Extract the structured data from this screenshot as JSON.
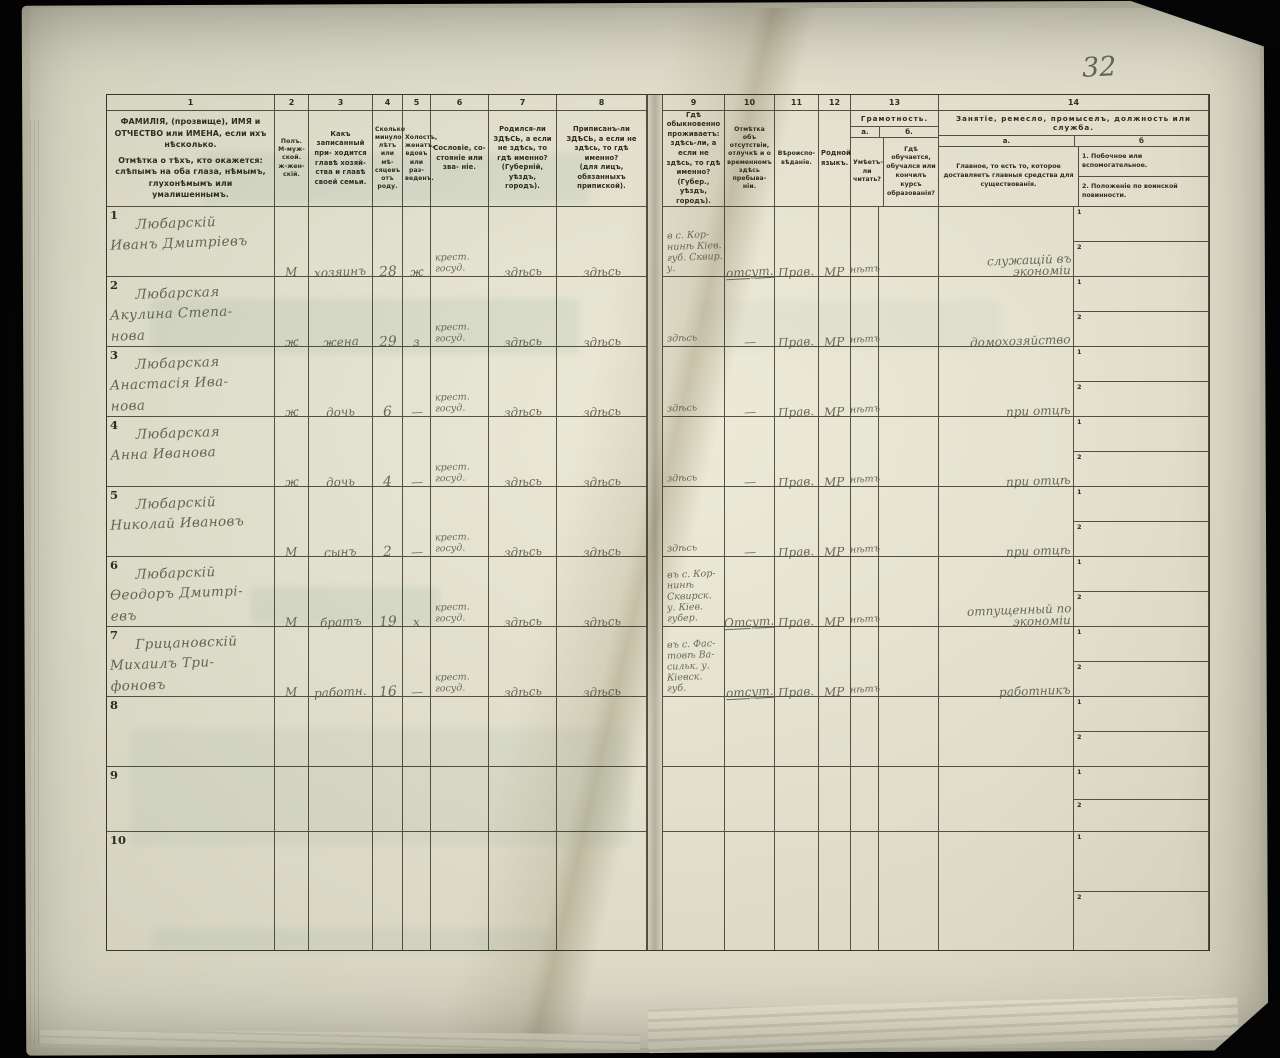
{
  "page": {
    "folio": "32"
  },
  "table": {
    "header": {
      "col_numbers": [
        "1",
        "2",
        "3",
        "4",
        "5",
        "6",
        "7",
        "8",
        "9",
        "10",
        "11",
        "12",
        "13",
        "14"
      ],
      "columns": [
        {
          "number": "1",
          "label": "ФАМИЛІЯ, (прозвище), ИМЯ и ОТЧЕСТВО или ИМЕНА, если ихъ нѣсколько.",
          "note": "Отмѣтка о тѣхъ, кто окажется: слѣпымъ на оба глаза, нѣмымъ, глухонѣмымъ или умалишеннымъ."
        },
        {
          "number": "2",
          "label": "Полъ.\nМ-муж-ской.\nж-жен-скій."
        },
        {
          "number": "3",
          "label": "Какъ записанный при- ходится главѣ хозяй- ства и главѣ своей семьи."
        },
        {
          "number": "4",
          "label": "Сколько минуло лѣтъ или мѣ- сяцевъ отъ роду."
        },
        {
          "number": "5",
          "label": "Холостъ, женатъ, вдовъ или раз- веденъ."
        },
        {
          "number": "6",
          "label": "Сословіе, со- стояніе или зва- ніе."
        },
        {
          "number": "7",
          "label": "Родился-ли ЗДѢСЬ, а если не здѣсь, то гдѣ именно?\n(Губерній, уѣздъ, городъ)."
        },
        {
          "number": "8",
          "label": "Приписанъ-ли ЗДѢСЬ, а если не здѣсь, то гдѣ именно?\n(для лицъ, обязанныхъ припиской)."
        },
        {
          "number": "9",
          "label": "Гдѣ обыкновенно проживаетъ: здѣсь-ли, а если не здѣсь, то гдѣ именно?\n(Губер., уѣздъ, городъ)."
        },
        {
          "number": "10",
          "label": "Отмѣтка объ отсутствіи, отлучкѣ и о временномъ здѣсь пребыва- ніи."
        },
        {
          "number": "11",
          "label": "Вѣроиспо- вѣданіе."
        },
        {
          "number": "12",
          "label": "Родной языкъ."
        },
        {
          "number": "13",
          "label": "Грамотность.",
          "sub_a_letter": "а.",
          "sub_b_letter": "б.",
          "sub_a": "Умѣетъ- ли читать?",
          "sub_b": "Гдѣ обучается, обучался или кончилъ курсъ образованія?"
        },
        {
          "number": "14",
          "label": "Занятіе, ремесло, промыселъ, должность или служба.",
          "sub_a_letter": "а.",
          "sub_b_letter": "б",
          "sub_a": "Главное, то есть то, которое доставляетъ главныя средства для существованія.",
          "sub_b_1": "1. Побочное или вспомогательное.",
          "sub_b_2": "2. Положеніе по воинской повинности.",
          "row_markers": [
            "1",
            "2"
          ]
        }
      ]
    },
    "records": [
      {
        "row_number": "1",
        "name_lines": [
          "Любарскій",
          "Иванъ Дмитріевъ"
        ],
        "sex": "М",
        "relation": "хозяинъ",
        "age": "28",
        "marital": "ж",
        "estate_lines": [
          "крест.",
          "госуд."
        ],
        "born": "здѣсь",
        "registered": "здѣсь",
        "residence_lines": [
          "в с. Кор-",
          "нинѣ Кіев.",
          "губ. Сквир.",
          "у."
        ],
        "absence": "отсут.",
        "religion": "Прав.",
        "language": "МР",
        "reads": "нѣтъ",
        "reads_where": "",
        "occupation_lines": [
          "служащій въ",
          "экономіи"
        ]
      },
      {
        "row_number": "2",
        "name_lines": [
          "Любарская",
          "Акулина Степа-",
          "нова"
        ],
        "sex": "ж",
        "relation": "жена",
        "age": "29",
        "marital": "з",
        "estate_lines": [
          "крест.",
          "госуд."
        ],
        "born": "здѣсь",
        "registered": "здѣсь",
        "residence_lines": [
          "здѣсь"
        ],
        "absence": "—",
        "religion": "Прав.",
        "language": "МР",
        "reads": "нѣтъ",
        "reads_where": "",
        "occupation_lines": [
          "домохозяйство"
        ]
      },
      {
        "row_number": "3",
        "name_lines": [
          "Любарская",
          "Анастасія Ива-",
          "нова"
        ],
        "sex": "ж",
        "relation": "дочь",
        "age": "6",
        "marital": "—",
        "estate_lines": [
          "крест.",
          "госуд."
        ],
        "born": "здѣсь",
        "registered": "здѣсь",
        "residence_lines": [
          "здѣсь"
        ],
        "absence": "—",
        "religion": "Прав.",
        "language": "МР",
        "reads": "нѣтъ",
        "reads_where": "",
        "occupation_lines": [
          "при отцѣ"
        ]
      },
      {
        "row_number": "4",
        "name_lines": [
          "Любарская",
          "Анна Иванова"
        ],
        "sex": "ж",
        "relation": "дочь",
        "age": "4",
        "marital": "—",
        "estate_lines": [
          "крест.",
          "госуд."
        ],
        "born": "здѣсь",
        "registered": "здѣсь",
        "residence_lines": [
          "здѣсь"
        ],
        "absence": "—",
        "religion": "Прав.",
        "language": "МР",
        "reads": "нѣтъ",
        "reads_where": "",
        "occupation_lines": [
          "при отцѣ"
        ]
      },
      {
        "row_number": "5",
        "name_lines": [
          "Любарскій",
          "Николай Ивановъ"
        ],
        "sex": "М",
        "relation": "сынъ",
        "age": "2",
        "marital": "—",
        "estate_lines": [
          "крест.",
          "госуд."
        ],
        "born": "здѣсь",
        "registered": "здѣсь",
        "residence_lines": [
          "здѣсь"
        ],
        "absence": "—",
        "religion": "Прав.",
        "language": "МР",
        "reads": "нѣтъ",
        "reads_where": "",
        "occupation_lines": [
          "при отцѣ"
        ]
      },
      {
        "row_number": "6",
        "name_lines": [
          "Любарскій",
          "Өеодоръ Дмитрі-",
          "евъ"
        ],
        "sex": "М",
        "relation": "братъ",
        "age": "19",
        "marital": "х",
        "estate_lines": [
          "крест.",
          "госуд."
        ],
        "born": "здѣсь",
        "registered": "здѣсь",
        "residence_lines": [
          "въ с. Кор-",
          "нинѣ",
          "Сквирск.",
          "у. Кіев.",
          "губер."
        ],
        "absence": "Отсут.",
        "religion": "Прав.",
        "language": "МР",
        "reads": "нѣтъ",
        "reads_where": "",
        "occupation_lines": [
          "отпущенный по",
          "экономіи"
        ]
      },
      {
        "row_number": "7",
        "name_lines": [
          "Грицановскій",
          "Михаилъ Три-",
          "фоновъ"
        ],
        "sex": "М",
        "relation": "работн.",
        "age": "16",
        "marital": "—",
        "estate_lines": [
          "крест.",
          "госуд."
        ],
        "born": "здѣсь",
        "registered": "здѣсь",
        "residence_lines": [
          "въ с. Фас-",
          "товѣ Ва-",
          "сильк. у.",
          "Кіевск.",
          "губ."
        ],
        "absence": "отсут.",
        "religion": "Прав.",
        "language": "МР",
        "reads": "нѣтъ",
        "reads_where": "",
        "occupation_lines": [
          "работникъ"
        ]
      },
      {
        "row_number": "8",
        "name_lines": [],
        "sex": "",
        "relation": "",
        "age": "",
        "marital": "",
        "estate_lines": [],
        "born": "",
        "registered": "",
        "residence_lines": [],
        "absence": "",
        "religion": "",
        "language": "",
        "reads": "",
        "reads_where": "",
        "occupation_lines": []
      },
      {
        "row_number": "9",
        "name_lines": [],
        "sex": "",
        "relation": "",
        "age": "",
        "marital": "",
        "estate_lines": [],
        "born": "",
        "registered": "",
        "residence_lines": [],
        "absence": "",
        "religion": "",
        "language": "",
        "reads": "",
        "reads_where": "",
        "occupation_lines": []
      },
      {
        "row_number": "10",
        "name_lines": [],
        "sex": "",
        "relation": "",
        "age": "",
        "marital": "",
        "estate_lines": [],
        "born": "",
        "registered": "",
        "residence_lines": [],
        "absence": "",
        "religion": "",
        "language": "",
        "reads": "",
        "reads_where": "",
        "occupation_lines": []
      }
    ]
  }
}
